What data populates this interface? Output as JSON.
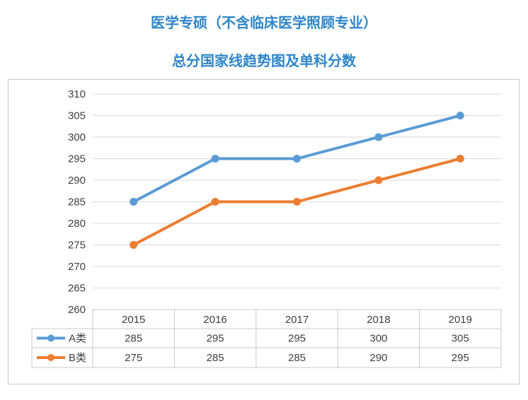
{
  "title": "医学专硕（不含临床医学照顾专业）",
  "subtitle": "总分国家线趋势图及单科分数",
  "chart_data": {
    "type": "line",
    "categories": [
      "2015",
      "2016",
      "2017",
      "2018",
      "2019"
    ],
    "series": [
      {
        "name": "A类",
        "color": "#5b9bd5",
        "values": [
          285,
          295,
          295,
          300,
          305
        ]
      },
      {
        "name": "B类",
        "color": "#ed7d31",
        "values": [
          275,
          285,
          285,
          290,
          295
        ]
      }
    ],
    "ylim": [
      260,
      310
    ],
    "yticks": [
      260,
      265,
      270,
      275,
      280,
      285,
      290,
      295,
      300,
      305,
      310
    ],
    "grid": true,
    "legend": "data-table"
  }
}
